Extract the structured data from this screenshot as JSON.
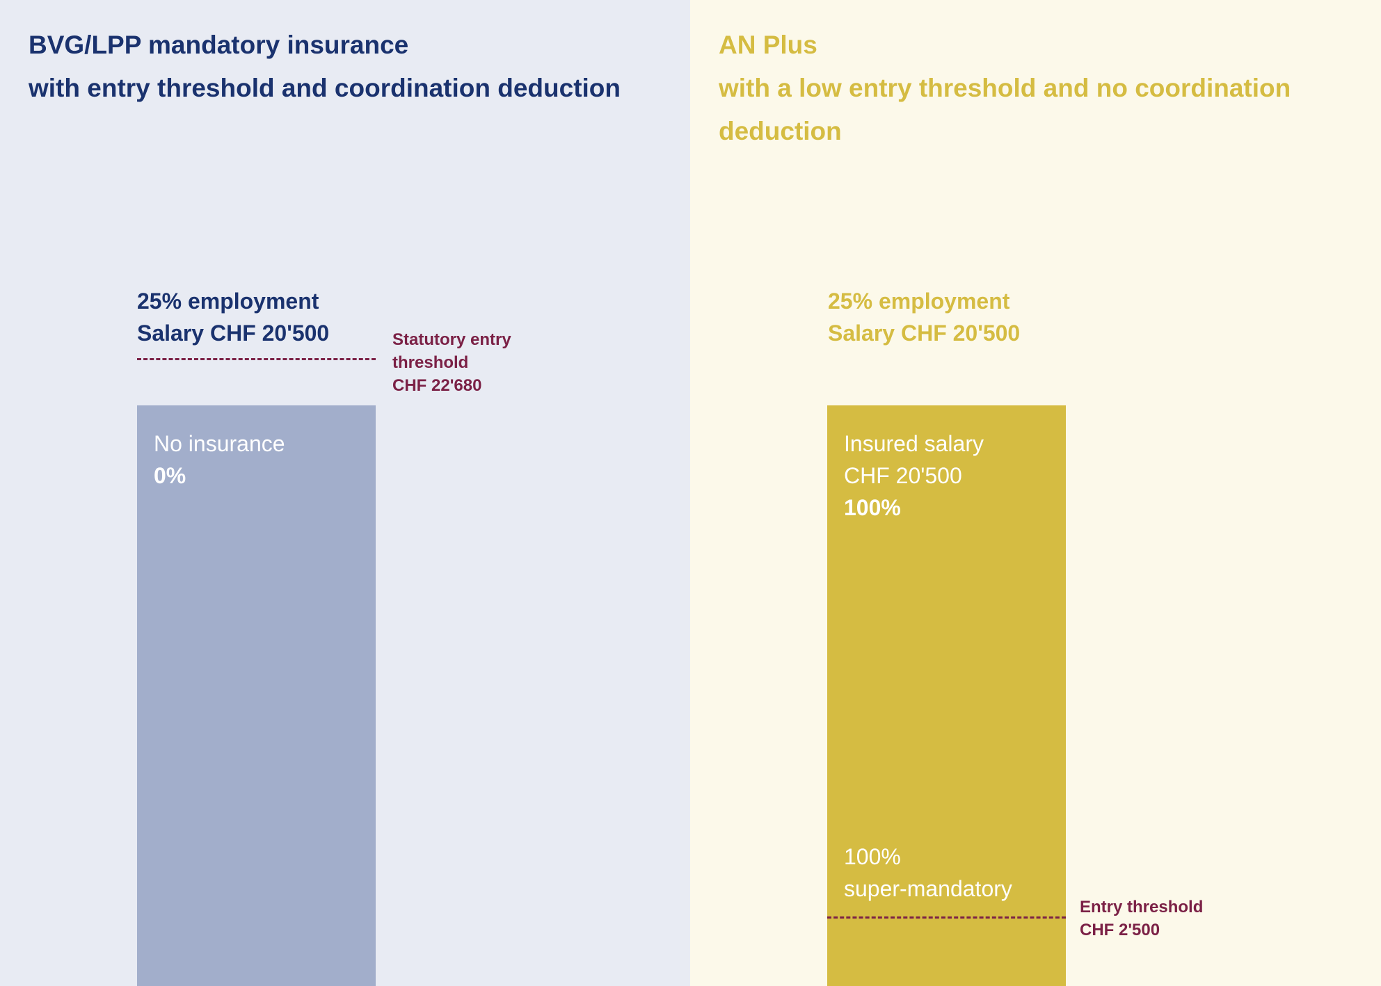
{
  "left_panel": {
    "title_line1": "BVG/LPP mandatory insurance",
    "title_line2": "with entry threshold and coordination deduction",
    "employment": "25% employment",
    "salary": "Salary CHF 20'500",
    "threshold": {
      "line1": "Statutory entry",
      "line2": "threshold",
      "line3": "CHF 22'680"
    },
    "bar": {
      "label": "No insurance",
      "percent": "0%"
    }
  },
  "right_panel": {
    "title_line1": "AN Plus",
    "title_line2": "with a low entry threshold and no coordination",
    "title_line3": "deduction",
    "employment": "25% employment",
    "salary": "Salary CHF 20'500",
    "bar": {
      "label_line1": "Insured salary",
      "label_line2": "CHF 20'500",
      "percent": "100%",
      "super_percent": "100%",
      "super_label": "super-mandatory"
    },
    "threshold": {
      "line1": "Entry threshold",
      "line2": "CHF 2'500"
    }
  },
  "colors": {
    "navy": "#1a326e",
    "gold": "#d5bc42",
    "maroon": "#7b2146",
    "bar_left": "#a2aecb",
    "bg_left": "#e8ebf3",
    "bg_right": "#fcf9ea"
  }
}
